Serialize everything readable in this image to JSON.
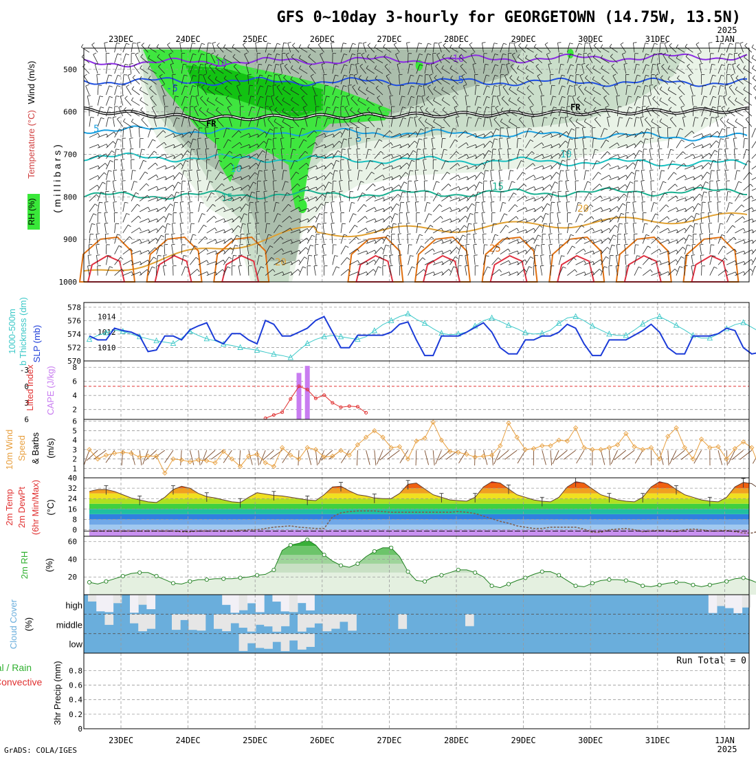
{
  "title": "GFS 0~10day 3-hourly for GEORGETOWN (14.75W, 13.5N)",
  "year_label": "2025",
  "date_labels": [
    "23DEC",
    "24DEC",
    "25DEC",
    "26DEC",
    "27DEC",
    "28DEC",
    "29DEC",
    "30DEC",
    "31DEC",
    "1JAN"
  ],
  "footer": "GrADS: COLA/IGES",
  "colors": {
    "rh_light": "#e8f2e6",
    "rh_mid": "#c8dcc8",
    "rh_dark": "#a9bcaa",
    "green1": "#39e839",
    "green2": "#10c010",
    "slp": "#1b3bd8",
    "thickness": "#3cc8c8",
    "cape": "#c87cf0",
    "lifted": "#e03030",
    "wind": "#e8a040",
    "barb": "#7a4a2a",
    "rh2m": "#30b030",
    "cloud": "#6aaedc",
    "cloud_bg": "#f2f0f6",
    "cloud_gray": "#e6e6e6"
  },
  "chart_data": [
    {
      "type": "heatmap",
      "panel": "upper_air",
      "ylabel": "(millibars)",
      "side_labels": [
        "Wind (m/s)",
        "Temperature (°C)",
        "RH (%)"
      ],
      "y_ticks": [
        500,
        600,
        700,
        800,
        900,
        1000
      ],
      "ylim": [
        1000,
        450
      ],
      "contour_labels": [
        "-10",
        "-5",
        "FR",
        "-5",
        "5",
        "10",
        "15",
        "20",
        "25",
        "30",
        "30",
        "30",
        "10"
      ],
      "temperature_isotherms_C": [
        -10,
        -5,
        0,
        5,
        10,
        15,
        20,
        25,
        30
      ]
    },
    {
      "type": "line",
      "panel": "slp_thickness",
      "ylabel_left": "1000-500mb Thickness (dm)",
      "ylabel_right": "SLP (mb)",
      "left_ticks": [
        570,
        572,
        574,
        576,
        578
      ],
      "right_ticks": [
        1010,
        1012,
        1014
      ],
      "series": [
        {
          "name": "SLP (mb)",
          "axis": "right",
          "values": [
            1011.5,
            1011.0,
            1011.0,
            1012.5,
            1012.2,
            1012.0,
            1011.5,
            1009.5,
            1009.7,
            1011.5,
            1011.5,
            1011.0,
            1012.3,
            1012.8,
            1013.2,
            1011.0,
            1010.5,
            1011.8,
            1011.8,
            1011.0,
            1010.5,
            1013.5,
            1013.0,
            1011.5,
            1011.5,
            1012.0,
            1012.5,
            1013.5,
            1014.0,
            1012.0,
            1010.0,
            1010.0,
            1011.6,
            1011.6,
            1011.6,
            1011.6,
            1012.0,
            1013.0,
            1013.3,
            1011.0,
            1009.0,
            1009.0,
            1011.5,
            1011.5,
            1011.5,
            1012.0,
            1012.6,
            1013.2,
            1012.0,
            1010.0,
            1009.2,
            1009.2,
            1011.0,
            1011.0,
            1011.5,
            1011.5,
            1012.0,
            1013.0,
            1012.5,
            1010.5,
            1009.0,
            1009.0,
            1011.0,
            1011.0,
            1011.0,
            1011.6,
            1012.2,
            1013.0,
            1012.0,
            1010.0,
            1009.2,
            1009.2,
            1011.5,
            1011.5,
            1011.5,
            1011.8,
            1012.5,
            1012.2,
            1010.0,
            1009.2,
            1009.4,
            1011.5,
            1011.5,
            1011.0,
            1011.5,
            1012.0,
            1013.0,
            1012.5,
            1011.5,
            1011.0,
            1011.5,
            1011.5
          ]
        },
        {
          "name": "1000-500mb Thickness (dm)",
          "axis": "left",
          "values": [
            573.2,
            573.8,
            574.2,
            574.6,
            574.4,
            574.0,
            573.6,
            573.3,
            573.0,
            572.8,
            572.6,
            573.4,
            574.4,
            573.8,
            573.3,
            573.0,
            572.5,
            572.3,
            572.0,
            571.8,
            571.6,
            571.3,
            571.0,
            570.8,
            570.5,
            571.6,
            572.6,
            573.2,
            573.6,
            573.8,
            573.6,
            573.4,
            573.2,
            573.6,
            574.5,
            575.4,
            576.0,
            576.6,
            577.0,
            576.2,
            575.6,
            574.8,
            574.1,
            573.9,
            574.0,
            574.3,
            575.2,
            576.0,
            576.4,
            575.9,
            575.3,
            574.8,
            574.2,
            574.0,
            574.1,
            574.6,
            575.6,
            576.4,
            576.6,
            576.0,
            575.2,
            574.6,
            574.0,
            573.8,
            573.8,
            574.6,
            575.5,
            576.2,
            576.6,
            576.0,
            575.3,
            574.6,
            573.8,
            573.4,
            573.4,
            574.0,
            574.8,
            575.4,
            575.7,
            575.0,
            574.3,
            573.8,
            573.6,
            573.4,
            573.5,
            574.4,
            575.4,
            575.8,
            575.2,
            574.4,
            573.8,
            573.6
          ]
        }
      ]
    },
    {
      "type": "bar",
      "panel": "cape_lifted",
      "ylabel_left": "Lifted Index",
      "ylabel_right": "CAPE (J/kg)",
      "left_ticks": [
        "-3",
        "0",
        "3",
        "6"
      ],
      "right_ticks": [
        2,
        4,
        6,
        8
      ],
      "series": [
        {
          "name": "CAPE (J/kg)",
          "values_by_step": {
            "25": 7.2,
            "26": 8.2
          }
        },
        {
          "name": "Lifted Index",
          "values_by_step": {
            "21": 5.8,
            "22": 5.2,
            "23": 4.7,
            "24": 2.3,
            "25": 0.0,
            "26": 0.6,
            "27": 2.2,
            "28": 1.6,
            "29": 3.0,
            "30": 3.8,
            "31": 3.6,
            "32": 3.7,
            "33": 4.8
          }
        }
      ]
    },
    {
      "type": "line",
      "panel": "wind10m",
      "ylabel": "10m Wind Speed & Barbs (m/s)",
      "y_ticks": [
        1,
        2,
        3,
        4,
        5,
        6
      ],
      "ylim": [
        0,
        6.2
      ],
      "series": [
        {
          "name": "10m Wind Speed",
          "values": [
            3.0,
            2.0,
            2.4,
            2.6,
            2.7,
            2.6,
            2.2,
            2.3,
            2.3,
            0.5,
            2.0,
            1.9,
            1.7,
            1.9,
            1.8,
            1.6,
            2.8,
            2.0,
            1.2,
            2.3,
            2.5,
            1.6,
            1.2,
            3.2,
            2.4,
            2.0,
            3.2,
            3.0,
            2.2,
            2.3,
            2.9,
            2.4,
            3.5,
            4.3,
            5.0,
            4.3,
            3.2,
            3.3,
            2.0,
            3.9,
            4.2,
            5.9,
            4.0,
            2.8,
            2.7,
            2.5,
            2.2,
            2.3,
            2.4,
            3.4,
            5.8,
            4.3,
            3.0,
            3.1,
            3.4,
            3.4,
            4.0,
            3.9,
            5.3,
            3.2,
            3.0,
            3.0,
            3.2,
            3.5,
            4.7,
            3.3,
            3.0,
            3.2,
            2.0,
            4.4,
            5.3,
            3.2,
            2.0,
            4.1,
            3.2,
            3.3,
            2.0,
            3.1,
            3.8,
            3.2,
            0.9,
            0.9,
            3.3,
            3.9,
            5.3,
            2.8,
            2.5,
            2.6,
            3.4,
            1.2,
            1.8,
            3.1
          ]
        }
      ]
    },
    {
      "type": "area",
      "panel": "temp2m",
      "ylabel": "2m Temp 2m DewPt (6hr Min/Max) (°C)",
      "y_ticks": [
        0,
        8,
        16,
        24,
        32,
        40
      ],
      "ylim": [
        -5,
        40
      ],
      "series": [
        {
          "name": "2m Temp",
          "values": [
            29.5,
            31.0,
            31.0,
            29.5,
            27.0,
            24.5,
            23.0,
            21.5,
            21.0,
            25.0,
            31.0,
            33.5,
            32.0,
            28.0,
            25.5,
            24.5,
            23.0,
            21.5,
            21.0,
            25.0,
            28.5,
            27.5,
            26.5,
            26.0,
            25.0,
            24.0,
            23.0,
            22.5,
            27.0,
            33.0,
            33.5,
            30.0,
            27.0,
            26.0,
            24.5,
            24.0,
            24.0,
            28.0,
            35.0,
            36.0,
            31.5,
            27.0,
            25.0,
            23.0,
            22.5,
            22.0,
            25.0,
            33.0,
            37.0,
            36.0,
            31.5,
            27.0,
            25.0,
            23.0,
            22.0,
            21.5,
            25.0,
            33.0,
            37.0,
            36.0,
            31.5,
            27.0,
            25.0,
            23.0,
            22.0,
            21.5,
            25.0,
            33.0,
            37.0,
            35.5,
            31.0,
            27.0,
            25.0,
            23.0,
            22.0,
            21.5,
            25.0,
            33.0,
            36.5,
            35.5,
            31.0,
            27.0,
            25.0,
            23.0,
            22.0,
            21.5,
            25.0,
            33.0,
            36.0,
            31.0,
            26.5,
            23.5,
            22.0,
            21.0
          ]
        },
        {
          "name": "2m DewPt",
          "values": [
            -1.0,
            -1.0,
            -1.0,
            -1.0,
            -1.0,
            -1.0,
            -1.0,
            -1.0,
            -1.0,
            -1.0,
            -1.0,
            -1.5,
            -1.5,
            -1.0,
            -1.0,
            -1.0,
            -1.0,
            -1.0,
            -0.5,
            0.0,
            0.0,
            1.0,
            2.0,
            2.5,
            3.0,
            2.0,
            1.5,
            1.0,
            1.0,
            10.0,
            13.0,
            14.0,
            14.5,
            14.5,
            14.5,
            14.0,
            13.5,
            13.5,
            13.5,
            13.5,
            13.5,
            13.5,
            13.5,
            13.5,
            14.0,
            13.5,
            12.5,
            10.5,
            8.5,
            6.5,
            5.0,
            3.0,
            2.0,
            1.0,
            1.0,
            2.0,
            2.0,
            2.0,
            2.0,
            0.5,
            -2.0,
            -2.0,
            0.0,
            0.5,
            1.0,
            0.0,
            -1.5,
            -1.0,
            -0.5,
            -1.0,
            -1.5,
            0.0,
            0.5,
            0.0,
            -1.0,
            -1.0,
            -0.5,
            -1.5,
            -2.5,
            -2.5,
            -1.0,
            0.0,
            0.0,
            0.0,
            0.0,
            0.0,
            -0.5,
            -1.0,
            0.0,
            0.5,
            0.5,
            0.5
          ]
        }
      ]
    },
    {
      "type": "area",
      "panel": "rh2m",
      "ylabel": "2m RH (%)",
      "y_ticks": [
        20,
        40,
        60
      ],
      "ylim": [
        0,
        65
      ],
      "series": [
        {
          "name": "2m RH",
          "values": [
            14,
            12,
            15,
            18,
            21,
            24,
            25,
            25,
            21,
            17,
            13,
            12,
            15,
            17,
            17,
            18,
            18,
            18,
            19,
            20,
            22,
            23,
            28,
            50,
            56,
            58,
            62,
            56,
            45,
            38,
            33,
            31,
            35,
            43,
            49,
            53,
            53,
            43,
            26,
            16,
            15,
            20,
            22,
            25,
            28,
            28,
            25,
            20,
            10,
            8,
            12,
            16,
            19,
            23,
            26,
            26,
            22,
            16,
            10,
            9,
            13,
            16,
            17,
            17,
            16,
            14,
            10,
            9,
            11,
            13,
            14,
            14,
            11,
            9,
            11,
            13,
            15,
            18,
            19,
            16,
            12,
            9,
            10,
            12,
            14,
            17,
            18,
            16,
            10,
            9,
            11,
            14
          ]
        }
      ]
    },
    {
      "type": "bar",
      "panel": "cloud_cover",
      "ylabel": "Cloud Cover (%)",
      "levels": [
        "high",
        "middle",
        "low"
      ]
    },
    {
      "type": "bar",
      "panel": "precip",
      "ylabel_left": "Total / Rain Convective",
      "ylabel": "3hr Precip (mm)",
      "y_ticks": [
        "0",
        "0.2",
        "0.4",
        "0.6",
        "0.8"
      ],
      "ylim": [
        0,
        1
      ],
      "run_total_label": "Run Total = 0",
      "values": []
    }
  ]
}
